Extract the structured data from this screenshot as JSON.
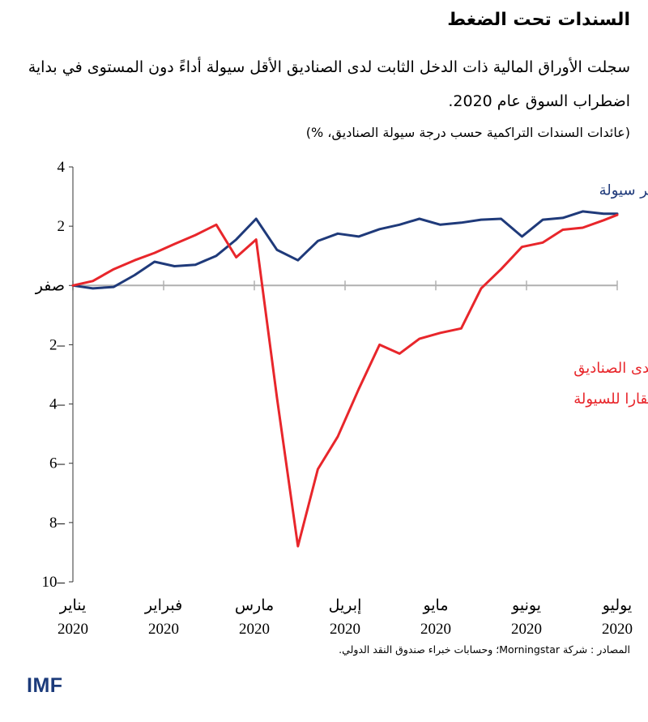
{
  "header": {
    "title": "السندات تحت الضغط",
    "subtitle": "سجلت الأوراق المالية ذات الدخل الثابت لدى الصناديق الأقل سيولة أداءً دون المستوى في بداية اضطراب السوق عام 2020.",
    "units": "(عائدات السندات التراكمية حسب درجة سيولة الصناديق، %)"
  },
  "footer": {
    "source": "المصادر : شركة Morningstar؛ وحسابات خبراء صندوق النقد الدولي.",
    "logo": "IMF"
  },
  "chart_data": {
    "type": "line",
    "title": "السندات تحت الضغط",
    "ylabel": "%",
    "ylim": [
      -10,
      4
    ],
    "xlim": [
      0,
      6
    ],
    "y_ticks": [
      {
        "value": 4,
        "label": "4"
      },
      {
        "value": 2,
        "label": "2"
      },
      {
        "value": 0,
        "label": "صفر"
      },
      {
        "value": -2,
        "label": "2–"
      },
      {
        "value": -4,
        "label": "4–"
      },
      {
        "value": -6,
        "label": "6–"
      },
      {
        "value": -8,
        "label": "8–"
      },
      {
        "value": -10,
        "label": "10–"
      }
    ],
    "x_ticks": [
      {
        "value": 0,
        "month": "يناير",
        "year": "2020"
      },
      {
        "value": 1,
        "month": "فبراير",
        "year": "2020"
      },
      {
        "value": 2,
        "month": "مارس",
        "year": "2020"
      },
      {
        "value": 3,
        "month": "إبريل",
        "year": "2020"
      },
      {
        "value": 4,
        "month": "مايو",
        "year": "2020"
      },
      {
        "value": 5,
        "month": "يونيو",
        "year": "2020"
      },
      {
        "value": 6,
        "month": "يوليو",
        "year": "2020"
      }
    ],
    "series": [
      {
        "name": "عائدات السندات لدى الصناديق الأكثر سيولة",
        "label_lines": [
          "عائدات السندات لدى الصناديق الأكثر سيولة"
        ],
        "label_pos": [
          5.8,
          3.05
        ],
        "color": "#1f3a7a",
        "x": [
          0,
          0.22,
          0.45,
          0.68,
          0.9,
          1.12,
          1.35,
          1.58,
          1.8,
          2.02,
          2.25,
          2.48,
          2.7,
          2.92,
          3.15,
          3.38,
          3.6,
          3.82,
          4.05,
          4.28,
          4.5,
          4.72,
          4.95,
          5.18,
          5.4,
          5.62,
          5.85,
          6.0
        ],
        "y": [
          0.0,
          -0.1,
          -0.05,
          0.35,
          0.8,
          0.65,
          0.7,
          1.0,
          1.55,
          2.25,
          1.2,
          0.85,
          1.5,
          1.75,
          1.65,
          1.9,
          2.05,
          2.25,
          2.05,
          2.12,
          2.22,
          2.25,
          1.65,
          2.22,
          2.28,
          2.5,
          2.42,
          2.42
        ]
      },
      {
        "name": "عائدات السندات لدى الصناديق الأكثر افتقارا للسيولة",
        "label_lines": [
          "عائدات السندات لدى الصناديق",
          "الأكثر افتقارا للسيولة"
        ],
        "label_pos": [
          5.52,
          -2.95
        ],
        "color": "#e8262b",
        "x": [
          0,
          0.22,
          0.45,
          0.68,
          0.9,
          1.12,
          1.35,
          1.58,
          1.8,
          2.02,
          2.25,
          2.48,
          2.7,
          2.92,
          3.15,
          3.38,
          3.6,
          3.82,
          4.05,
          4.28,
          4.5,
          4.72,
          4.95,
          5.18,
          5.4,
          5.62,
          5.85,
          6.0
        ],
        "y": [
          0.0,
          0.15,
          0.55,
          0.85,
          1.1,
          1.4,
          1.7,
          2.05,
          0.95,
          1.55,
          -3.8,
          -8.8,
          -6.2,
          -5.1,
          -3.5,
          -2.0,
          -2.3,
          -1.8,
          -1.6,
          -1.45,
          -0.1,
          0.55,
          1.3,
          1.45,
          1.88,
          1.95,
          2.2,
          2.38
        ]
      }
    ]
  }
}
